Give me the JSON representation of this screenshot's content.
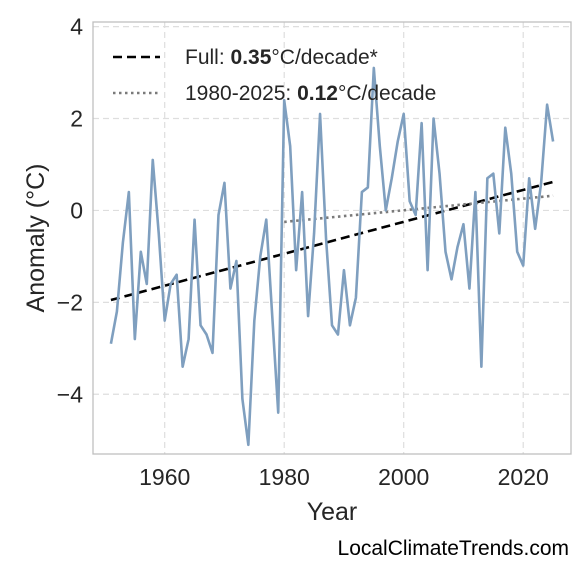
{
  "chart_data": {
    "type": "line",
    "title": "",
    "xlabel": "Year",
    "ylabel": "Anomaly (°C)",
    "xlim": [
      1948,
      2028
    ],
    "ylim": [
      -5.3,
      4.1
    ],
    "xticks": [
      1960,
      1980,
      2000,
      2020
    ],
    "yticks": [
      -4,
      -2,
      0,
      2,
      4
    ],
    "ytick_labels": [
      "−4",
      "−2",
      "0",
      "2",
      "4"
    ],
    "grid": true,
    "legend_position": "top-left",
    "colors": {
      "series": "#7f9fbf",
      "full_trend": "#000000",
      "recent_trend": "#7a7a7a",
      "grid": "#dedede",
      "axes": "#bfbfbf"
    },
    "series": [
      {
        "x": [
          1951,
          1952,
          1953,
          1954,
          1955,
          1956,
          1957,
          1958,
          1959,
          1960,
          1961,
          1962,
          1963,
          1964,
          1965,
          1966,
          1967,
          1968,
          1969,
          1970,
          1971,
          1972,
          1973,
          1974,
          1975,
          1976,
          1977,
          1978,
          1979,
          1980,
          1981,
          1982,
          1983,
          1984,
          1985,
          1986,
          1987,
          1988,
          1989,
          1990,
          1991,
          1992,
          1993,
          1994,
          1995,
          1996,
          1997,
          1998,
          1999,
          2000,
          2001,
          2002,
          2003,
          2004,
          2005,
          2006,
          2007,
          2008,
          2009,
          2010,
          2011,
          2012,
          2013,
          2014,
          2015,
          2016,
          2017,
          2018,
          2019,
          2020,
          2021,
          2022,
          2023,
          2024,
          2025
        ],
        "values": [
          -2.9,
          -2.2,
          -0.7,
          0.4,
          -2.8,
          -0.9,
          -1.6,
          1.1,
          -0.5,
          -2.4,
          -1.6,
          -1.4,
          -3.4,
          -2.8,
          -0.2,
          -2.5,
          -2.7,
          -3.1,
          -0.1,
          0.6,
          -1.7,
          -1.1,
          -4.1,
          -5.1,
          -2.4,
          -1.0,
          -0.2,
          -2.3,
          -4.4,
          2.4,
          1.4,
          -1.3,
          0.4,
          -2.3,
          -0.5,
          2.1,
          -0.6,
          -2.5,
          -2.7,
          -1.3,
          -2.5,
          -1.9,
          0.4,
          0.5,
          3.1,
          1.4,
          0.0,
          0.7,
          1.5,
          2.1,
          0.2,
          -0.1,
          1.9,
          -1.3,
          2.0,
          0.8,
          -0.9,
          -1.5,
          -0.8,
          -0.3,
          -1.7,
          0.4,
          -3.4,
          0.7,
          0.8,
          -0.5,
          1.8,
          0.8,
          -0.9,
          -1.2,
          0.7,
          -0.4,
          0.6,
          2.3,
          1.5
        ]
      }
    ],
    "trendlines": [
      {
        "name_prefix": "Full: ",
        "rate": "0.35",
        "name_suffix": "°C/decade*",
        "style": "dashed",
        "x": [
          1951,
          2025
        ],
        "y": [
          -1.95,
          0.62
        ]
      },
      {
        "name_prefix": "1980-2025: ",
        "rate": "0.12",
        "name_suffix": "°C/decade",
        "style": "dotted",
        "x": [
          1980,
          2025
        ],
        "y": [
          -0.25,
          0.32
        ]
      }
    ]
  },
  "footer": "LocalClimateTrends.com"
}
